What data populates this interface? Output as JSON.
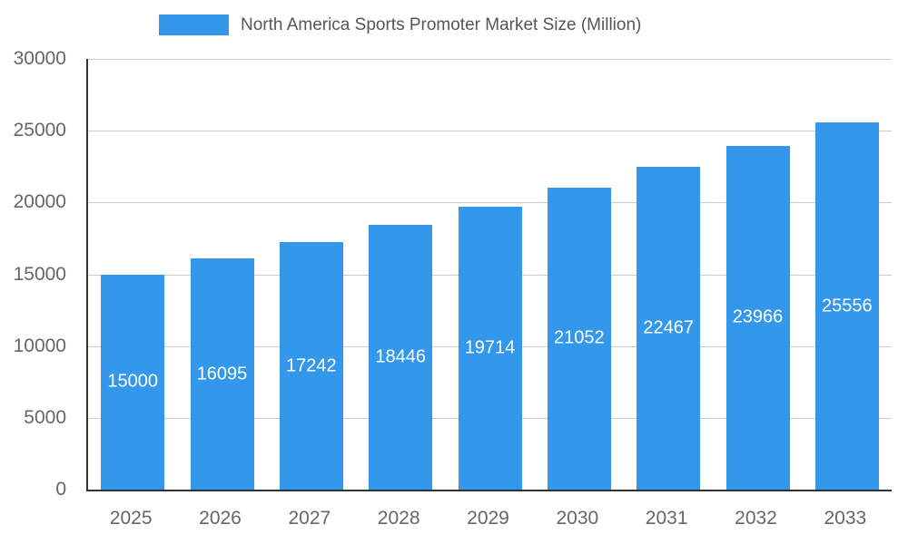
{
  "chart_data": {
    "type": "bar",
    "title": "North America Sports Promoter Market Size (Million)",
    "categories": [
      "2025",
      "2026",
      "2027",
      "2028",
      "2029",
      "2030",
      "2031",
      "2032",
      "2033"
    ],
    "values": [
      15000,
      16095,
      17242,
      18446,
      19714,
      21052,
      22467,
      23966,
      25556
    ],
    "ylim": [
      0,
      30000
    ],
    "yticks": [
      0,
      5000,
      10000,
      15000,
      20000,
      25000,
      30000
    ],
    "xlabel": "",
    "ylabel": "",
    "grid": true,
    "legend_position": "top",
    "colors": {
      "bar": "#3398EC",
      "value_label": "#ffffff",
      "grid": "#cccccc",
      "axis": "#333333",
      "tick_text": "#666666",
      "title_text": "#555555"
    }
  }
}
